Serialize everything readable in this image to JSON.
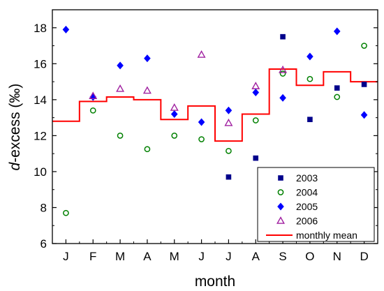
{
  "chart_data": {
    "type": "scatter",
    "xlabel": "month",
    "ylabel_prefix": "d",
    "ylabel_suffix": "-excess (‰)",
    "categories": [
      "J",
      "F",
      "M",
      "A",
      "M",
      "J",
      "J",
      "A",
      "S",
      "O",
      "N",
      "D"
    ],
    "ylim": [
      6,
      19
    ],
    "yticks": [
      6,
      8,
      10,
      12,
      14,
      16,
      18
    ],
    "grid": false,
    "legend_position": "bottom-right",
    "series": [
      {
        "name": "2003",
        "marker": "square",
        "color": "#00008b",
        "values": [
          null,
          null,
          null,
          null,
          null,
          null,
          9.7,
          10.75,
          17.5,
          12.9,
          14.65,
          14.85
        ]
      },
      {
        "name": "2004",
        "marker": "circle-open",
        "color": "#008000",
        "values": [
          7.7,
          13.4,
          12.0,
          11.25,
          12.0,
          11.8,
          11.15,
          12.85,
          15.45,
          15.15,
          14.15,
          17.0
        ]
      },
      {
        "name": "2005",
        "marker": "diamond",
        "color": "#0000ff",
        "values": [
          17.9,
          14.15,
          15.9,
          16.3,
          13.2,
          12.75,
          13.4,
          14.4,
          14.1,
          16.4,
          17.8,
          13.15
        ]
      },
      {
        "name": "2006",
        "marker": "triangle-open",
        "color": "#a020a0",
        "values": [
          null,
          14.2,
          14.6,
          14.5,
          13.55,
          16.5,
          12.7,
          14.75,
          15.65,
          null,
          null,
          null
        ]
      }
    ],
    "mean_line": {
      "name": "monthly mean",
      "color": "#ff0000",
      "values": [
        12.8,
        13.9,
        14.15,
        14.0,
        12.9,
        13.65,
        11.7,
        13.2,
        15.7,
        14.8,
        15.55,
        15.0
      ]
    }
  }
}
